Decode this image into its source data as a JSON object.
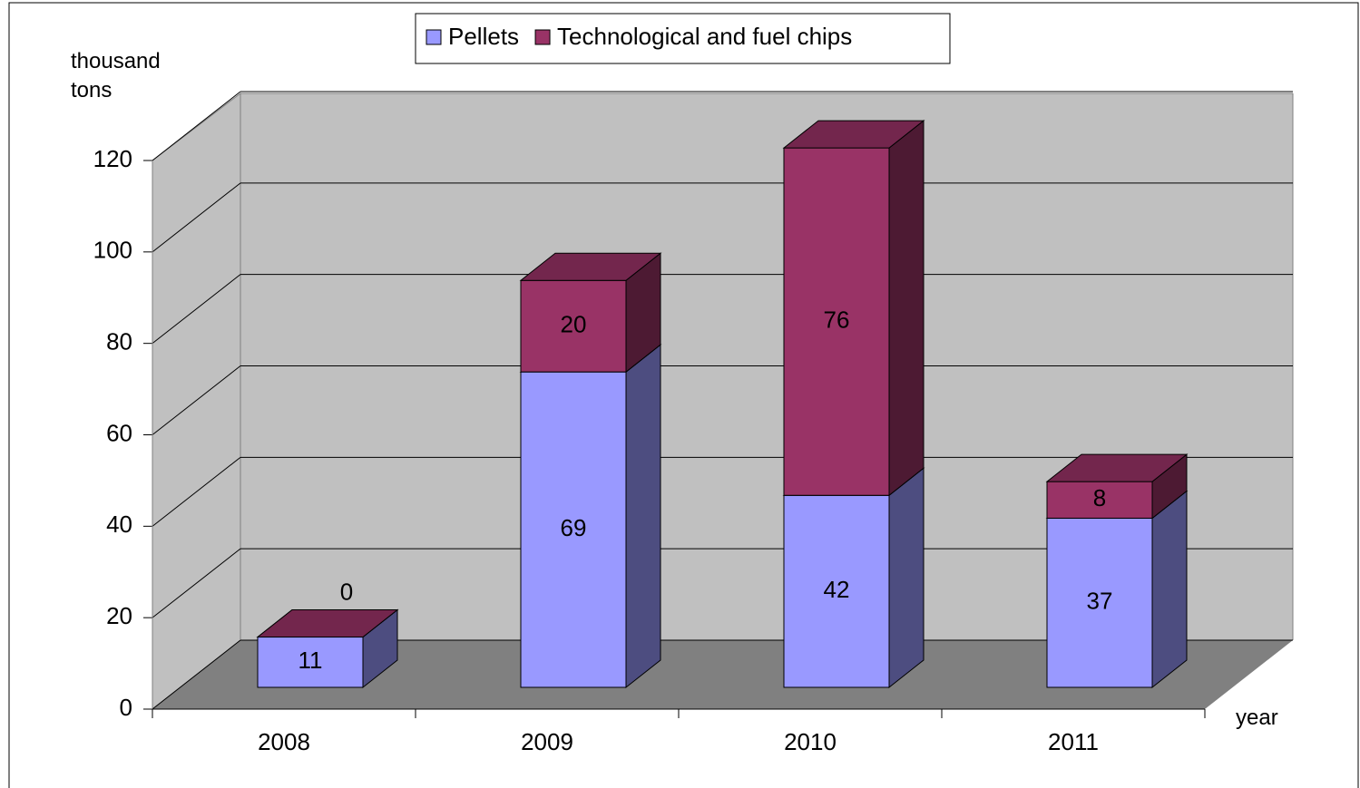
{
  "chart_data": {
    "type": "bar3d_stacked",
    "y_label": "thousand tons",
    "x_label": "year",
    "categories": [
      "2008",
      "2009",
      "2010",
      "2011"
    ],
    "series": [
      {
        "name": "Pellets",
        "color": "#9999ff",
        "values": [
          11,
          69,
          42,
          37
        ]
      },
      {
        "name": "Technological and fuel chips",
        "color": "#993366",
        "values": [
          0,
          20,
          76,
          8
        ]
      }
    ],
    "ylim": [
      0,
      120
    ],
    "yticks": [
      0,
      20,
      40,
      60,
      80,
      100,
      120
    ],
    "grid": true,
    "legend": "top"
  }
}
